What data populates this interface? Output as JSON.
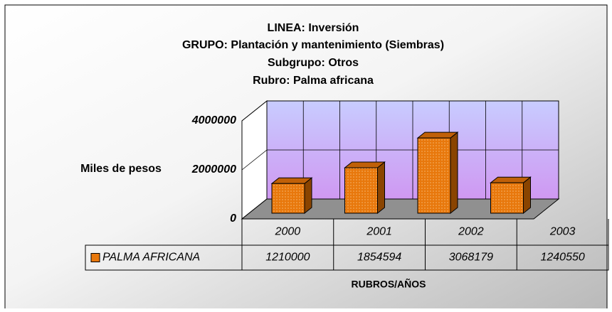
{
  "chart_data": {
    "type": "bar3d",
    "title": [
      "LINEA: Inversión",
      "GRUPO: Plantación y mantenimiento (Siembras)",
      "Subgrupo: Otros",
      "Rubro: Palma africana"
    ],
    "y_label": "Miles de pesos",
    "x_label": "RUBROS/AÑOS",
    "categories": [
      "2000",
      "2001",
      "2002",
      "2003"
    ],
    "series": [
      {
        "name": "PALMA AFRICANA",
        "color": "#e8780c",
        "values": [
          1210000,
          1854594,
          3068179,
          1240550
        ]
      }
    ],
    "ylim": [
      0,
      4000000
    ],
    "yticks": [
      0,
      2000000,
      4000000
    ],
    "grid": true,
    "data_table": true
  }
}
